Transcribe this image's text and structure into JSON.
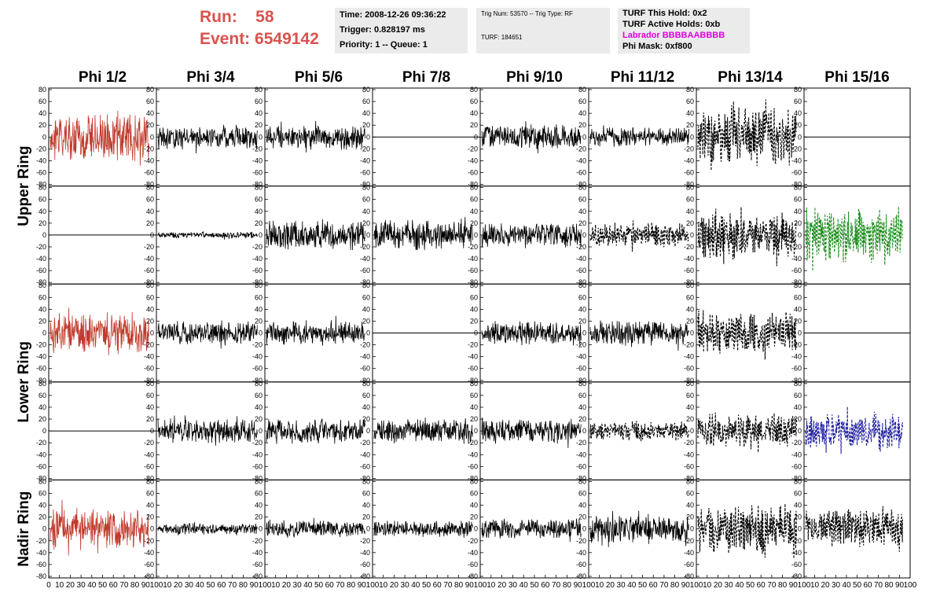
{
  "header": {
    "run_label": "Run:",
    "run_value": "58",
    "event_label": "Event:",
    "event_value": "6549142",
    "time": "Time: 2008-12-26 09:36:22",
    "trigger": "Trigger: 0.828197 ms",
    "priority": "Priority: 1 -- Queue: 1",
    "trig_num": "Trig Num: 53570 -- Trig Type: RF",
    "turf": "TURF: 184651",
    "turf_this_hold": "TURF This Hold: 0x2",
    "turf_active_holds": "TURF Active Holds: 0xb",
    "labrador": "Labrador BBBBAABBBB",
    "phi_mask": "Phi Mask: 0xf800"
  },
  "colors": {
    "red": "#c0392b",
    "black": "#000000",
    "green": "#1e8f1e",
    "blue": "#1f1f9f",
    "run_text": "#d9534f",
    "labrador": "#e000e0"
  },
  "chart_data": {
    "type": "line",
    "columns": [
      "Phi 1/2",
      "Phi 3/4",
      "Phi 5/6",
      "Phi 7/8",
      "Phi 9/10",
      "Phi 11/12",
      "Phi 13/14",
      "Phi 15/16"
    ],
    "ring_labels": [
      "Upper Ring",
      "Lower Ring",
      "Nadir Ring"
    ],
    "ylim": [
      -80,
      80
    ],
    "y_ticks": [
      -80,
      -60,
      -40,
      -20,
      0,
      20,
      40,
      60,
      80
    ],
    "xlim": [
      0,
      100
    ],
    "x_ticks_first": [
      "0",
      "10",
      "20",
      "30",
      "40",
      "50",
      "60",
      "70",
      "80",
      "90",
      "100"
    ],
    "x_ticks": [
      "10",
      "20",
      "30",
      "40",
      "50",
      "60",
      "70",
      "80",
      "90",
      "100"
    ],
    "rows": [
      [
        "red:30",
        "solid:15",
        "solid:15",
        "flat",
        "solid:15",
        "solid:12",
        "dash:35",
        "flat"
      ],
      [
        "flat",
        "solid:4",
        "solid:18",
        "solid:18",
        "solid:15",
        "dash:15",
        "dash:30",
        "green:35"
      ],
      [
        "red:25",
        "solid:15",
        "solid:15",
        "flat",
        "solid:15",
        "solid:15",
        "dash:25",
        "flat"
      ],
      [
        "flat",
        "solid:15",
        "solid:15",
        "solid:15",
        "solid:15",
        "dash:12",
        "dash:20",
        "blue:22"
      ],
      [
        "red:25",
        "solid:7",
        "solid:10",
        "solid:10",
        "solid:12",
        "solid:18",
        "dash:30",
        "dash:25"
      ]
    ]
  }
}
